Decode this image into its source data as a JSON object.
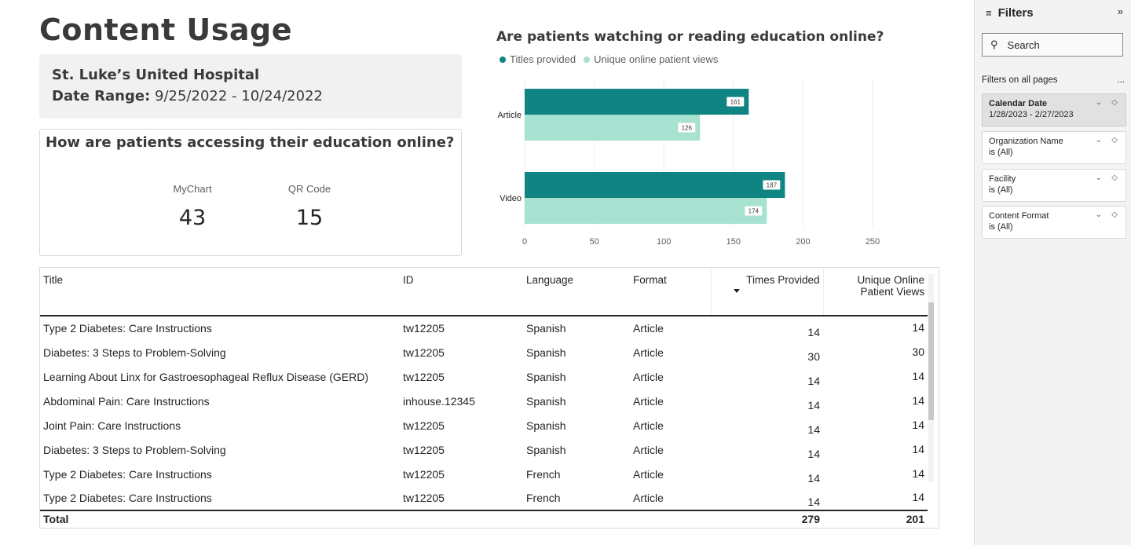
{
  "page": {
    "title": "Content Usage",
    "hospital": "St. Luke’s United Hospital",
    "date_range_label": "Date Range:",
    "date_range_value": "9/25/2022 - 10/24/2022"
  },
  "access": {
    "question": "How are patients accessing their education online?",
    "kpis": [
      {
        "label": "MyChart",
        "value": "43"
      },
      {
        "label": "QR Code",
        "value": "15"
      }
    ]
  },
  "chart_data": {
    "type": "bar",
    "orientation": "horizontal",
    "title": "Are patients watching or reading education online?",
    "categories": [
      "Article",
      "Video"
    ],
    "series": [
      {
        "name": "Titles provided",
        "values": [
          161,
          187
        ],
        "color": "#0f8482"
      },
      {
        "name": "Unique online patient views",
        "values": [
          126,
          174
        ],
        "color": "#a7e1cf"
      }
    ],
    "xlim": [
      0,
      250
    ],
    "x_ticks": [
      "0",
      "50",
      "100",
      "150",
      "200",
      "250"
    ],
    "legend_position": "top-left",
    "grid": true
  },
  "table": {
    "columns": [
      "Title",
      "ID",
      "Language",
      "Format",
      "Times Provided",
      "Unique Online Patient Views"
    ],
    "rows": [
      [
        "Type 2 Diabetes: Care Instructions",
        "tw12205",
        "Spanish",
        "Article",
        "14",
        "14"
      ],
      [
        "Diabetes: 3 Steps to Problem-Solving",
        "tw12205",
        "Spanish",
        "Article",
        "30",
        "30"
      ],
      [
        "Learning About Linx for Gastroesophageal Reflux Disease (GERD)",
        "tw12205",
        "Spanish",
        "Article",
        "14",
        "14"
      ],
      [
        "Abdominal Pain: Care Instructions",
        "inhouse.12345",
        "Spanish",
        "Article",
        "14",
        "14"
      ],
      [
        "Joint Pain: Care Instructions",
        "tw12205",
        "Spanish",
        "Article",
        "14",
        "14"
      ],
      [
        "Diabetes: 3 Steps to Problem-Solving",
        "tw12205",
        "Spanish",
        "Article",
        "14",
        "14"
      ],
      [
        "Type 2 Diabetes: Care Instructions",
        "tw12205",
        "French",
        "Article",
        "14",
        "14"
      ],
      [
        "Type 2 Diabetes: Care Instructions",
        "tw12205",
        "French",
        "Article",
        "14",
        "14"
      ]
    ],
    "total": {
      "label": "Total",
      "times_provided": "279",
      "unique_views": "201"
    },
    "sort_column": "Times Provided",
    "sort_direction": "descending"
  },
  "filters": {
    "title": "Filters",
    "search_placeholder": "Search",
    "section_label": "Filters on all pages",
    "more_label": "...",
    "items": [
      {
        "name": "Calendar Date",
        "value": "1/28/2023 - 2/27/2023"
      },
      {
        "name": "Organization Name",
        "value": "is (All)"
      },
      {
        "name": "Facility",
        "value": "is (All)"
      },
      {
        "name": "Content Format",
        "value": "is (All)"
      }
    ]
  }
}
